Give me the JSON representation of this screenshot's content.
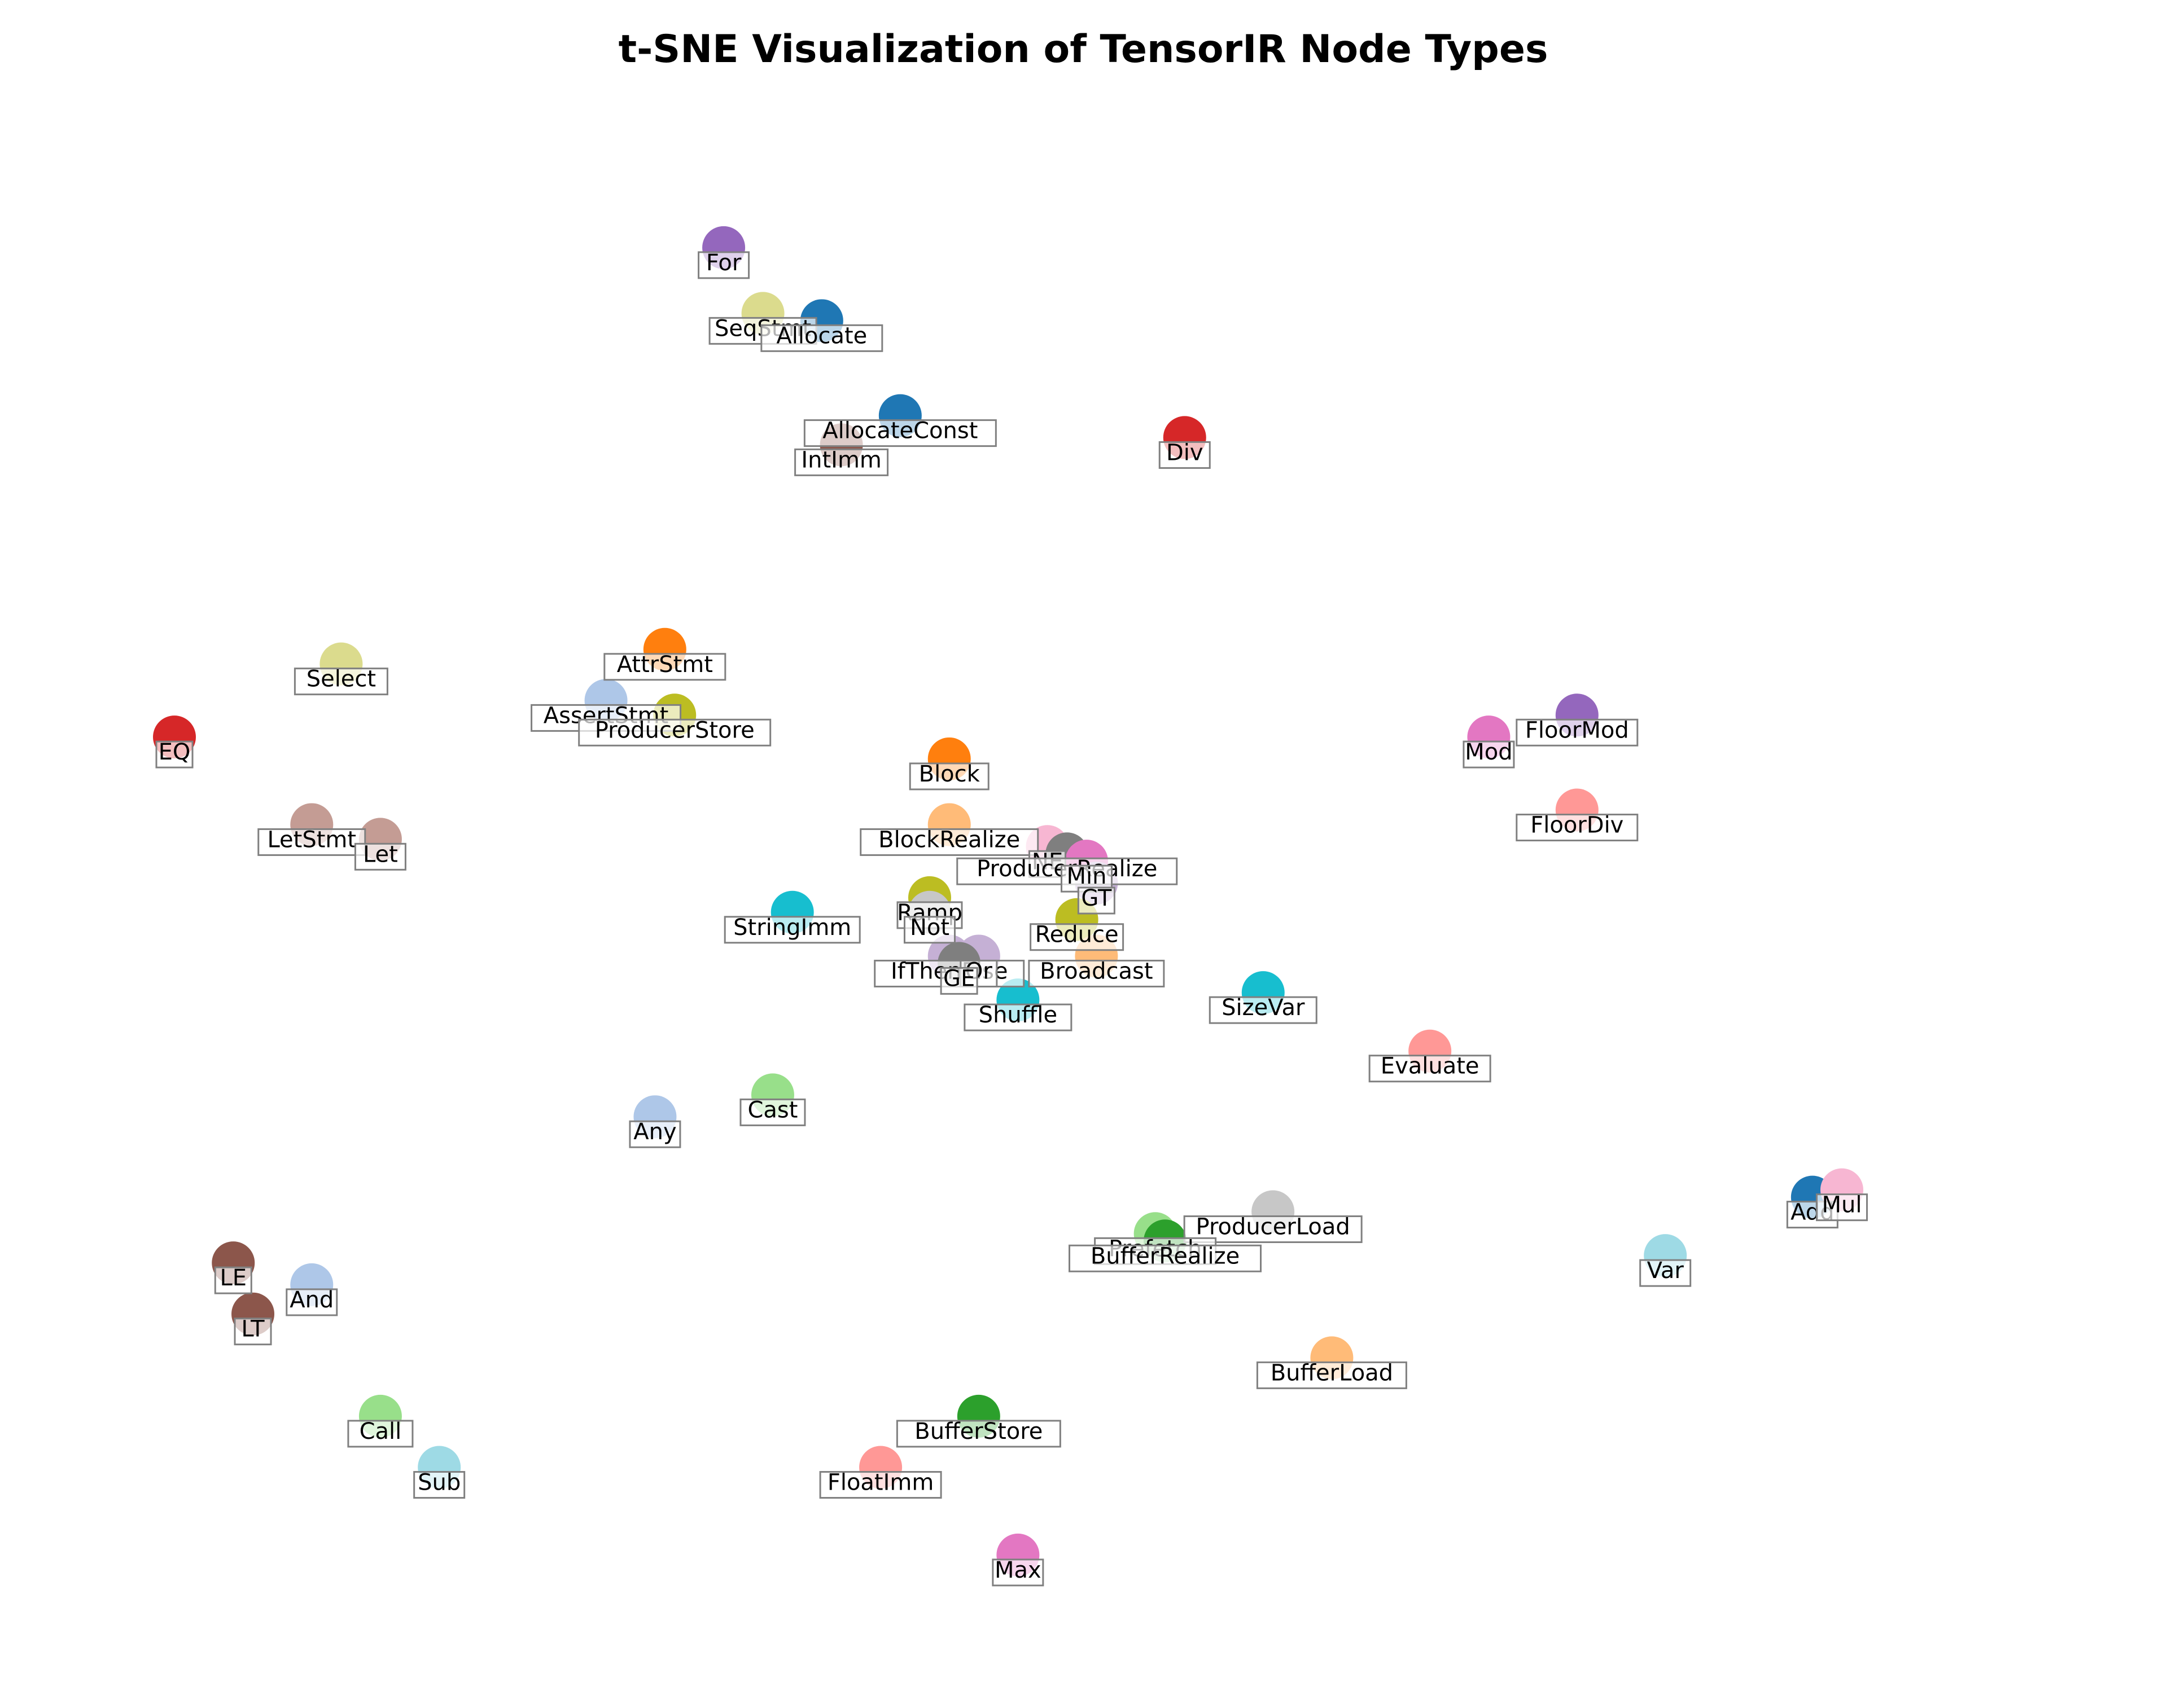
{
  "chart_data": {
    "type": "scatter",
    "title": "t-SNE Visualization of TensorIR Node Types",
    "xlabel": "",
    "ylabel": "",
    "xlim": [
      -1.0,
      100.0
    ],
    "ylim": [
      -6.0,
      101.0
    ],
    "axes_visible": false,
    "grid": false,
    "legend": "none",
    "points": [
      {
        "label": "For",
        "x": 31.0,
        "y": 91.0,
        "color": "#9467bd"
      },
      {
        "label": "SeqStmt",
        "x": 33.0,
        "y": 86.5,
        "color": "#dbdb8d"
      },
      {
        "label": "Allocate",
        "x": 36.0,
        "y": 86.0,
        "color": "#1f77b4"
      },
      {
        "label": "AllocateConst",
        "x": 40.0,
        "y": 79.5,
        "color": "#1f77b4"
      },
      {
        "label": "IntImm",
        "x": 37.0,
        "y": 77.5,
        "color": "#8c564b"
      },
      {
        "label": "Div",
        "x": 54.5,
        "y": 78.0,
        "color": "#d62728"
      },
      {
        "label": "Select",
        "x": 11.5,
        "y": 62.5,
        "color": "#dbdb8d"
      },
      {
        "label": "AttrStmt",
        "x": 28.0,
        "y": 63.5,
        "color": "#ff7f0e"
      },
      {
        "label": "AssertStmt",
        "x": 25.0,
        "y": 60.0,
        "color": "#aec7e8"
      },
      {
        "label": "ProducerStore",
        "x": 28.5,
        "y": 59.0,
        "color": "#bcbd22"
      },
      {
        "label": "EQ",
        "x": 3.0,
        "y": 57.5,
        "color": "#d62728"
      },
      {
        "label": "LetStmt",
        "x": 10.0,
        "y": 51.5,
        "color": "#c49c94"
      },
      {
        "label": "Let",
        "x": 13.5,
        "y": 50.5,
        "color": "#c49c94"
      },
      {
        "label": "Block",
        "x": 42.5,
        "y": 56.0,
        "color": "#ff7f0e"
      },
      {
        "label": "BlockRealize",
        "x": 42.5,
        "y": 51.5,
        "color": "#ffbb78"
      },
      {
        "label": "NE",
        "x": 47.5,
        "y": 50.0,
        "color": "#f7b6d2"
      },
      {
        "label": "ProducerRealize",
        "x": 48.5,
        "y": 49.5,
        "color": "#7f7f7f"
      },
      {
        "label": "Min",
        "x": 49.5,
        "y": 49.0,
        "color": "#e377c2"
      },
      {
        "label": "GT",
        "x": 50.0,
        "y": 47.5,
        "color": "#c5b0d5"
      },
      {
        "label": "Ramp",
        "x": 41.5,
        "y": 46.5,
        "color": "#bcbd22"
      },
      {
        "label": "Not",
        "x": 41.5,
        "y": 45.5,
        "color": "#c7c7c7"
      },
      {
        "label": "StringImm",
        "x": 34.5,
        "y": 45.5,
        "color": "#17becf"
      },
      {
        "label": "Reduce",
        "x": 49.0,
        "y": 45.0,
        "color": "#bcbd22"
      },
      {
        "label": "IfThenElse",
        "x": 42.5,
        "y": 42.5,
        "color": "#c5b0d5"
      },
      {
        "label": "Or",
        "x": 44.0,
        "y": 42.5,
        "color": "#c5b0d5"
      },
      {
        "label": "GE",
        "x": 43.0,
        "y": 42.0,
        "color": "#7f7f7f"
      },
      {
        "label": "Broadcast",
        "x": 50.0,
        "y": 42.5,
        "color": "#ffbb78"
      },
      {
        "label": "Shuffle",
        "x": 46.0,
        "y": 39.5,
        "color": "#17becf"
      },
      {
        "label": "SizeVar",
        "x": 58.5,
        "y": 40.0,
        "color": "#17becf"
      },
      {
        "label": "Evaluate",
        "x": 67.0,
        "y": 36.0,
        "color": "#ff9896"
      },
      {
        "label": "Any",
        "x": 27.5,
        "y": 31.5,
        "color": "#aec7e8"
      },
      {
        "label": "Cast",
        "x": 33.5,
        "y": 33.0,
        "color": "#98df8a"
      },
      {
        "label": "Mod",
        "x": 70.0,
        "y": 57.5,
        "color": "#e377c2"
      },
      {
        "label": "FloorMod",
        "x": 74.5,
        "y": 59.0,
        "color": "#9467bd"
      },
      {
        "label": "FloorDiv",
        "x": 74.5,
        "y": 52.5,
        "color": "#ff9896"
      },
      {
        "label": "ProducerLoad",
        "x": 59.0,
        "y": 25.0,
        "color": "#c7c7c7"
      },
      {
        "label": "Prefetch",
        "x": 53.0,
        "y": 23.5,
        "color": "#98df8a"
      },
      {
        "label": "BufferRealize",
        "x": 53.5,
        "y": 23.0,
        "color": "#2ca02c"
      },
      {
        "label": "Add",
        "x": 86.5,
        "y": 26.0,
        "color": "#1f77b4"
      },
      {
        "label": "Mul",
        "x": 88.0,
        "y": 26.5,
        "color": "#f7b6d2"
      },
      {
        "label": "Var",
        "x": 79.0,
        "y": 22.0,
        "color": "#9edae5"
      },
      {
        "label": "BufferLoad",
        "x": 62.0,
        "y": 15.0,
        "color": "#ffbb78"
      },
      {
        "label": "LE",
        "x": 6.0,
        "y": 21.5,
        "color": "#8c564b"
      },
      {
        "label": "And",
        "x": 10.0,
        "y": 20.0,
        "color": "#aec7e8"
      },
      {
        "label": "LT",
        "x": 7.0,
        "y": 18.0,
        "color": "#8c564b"
      },
      {
        "label": "Call",
        "x": 13.5,
        "y": 11.0,
        "color": "#98df8a"
      },
      {
        "label": "Sub",
        "x": 16.5,
        "y": 7.5,
        "color": "#9edae5"
      },
      {
        "label": "BufferStore",
        "x": 44.0,
        "y": 11.0,
        "color": "#2ca02c"
      },
      {
        "label": "FloatImm",
        "x": 39.0,
        "y": 7.5,
        "color": "#ff9896"
      },
      {
        "label": "Max",
        "x": 46.0,
        "y": 1.5,
        "color": "#e377c2"
      }
    ]
  }
}
